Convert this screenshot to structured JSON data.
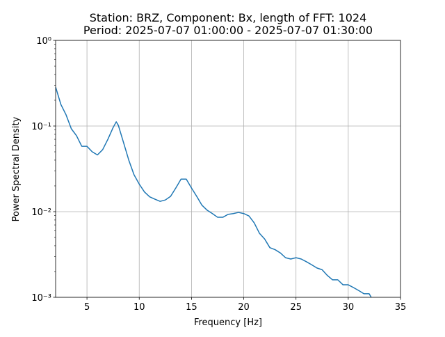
{
  "chart_data": {
    "type": "line",
    "title": "Station: BRZ, Component: Bx, length of FFT: 1024",
    "subtitle": "Period: 2025-07-07 01:00:00 - 2025-07-07 01:30:00",
    "x_label": "Frequency [Hz]",
    "y_label": "Power Spectral Density",
    "log_y": true,
    "grid": true,
    "xlim": [
      2,
      35
    ],
    "ylim": [
      0.001,
      1
    ],
    "xticks": [
      5,
      10,
      15,
      20,
      25,
      30,
      35
    ],
    "yticks": [
      {
        "value": 0.001,
        "label": "10⁻³"
      },
      {
        "value": 0.01,
        "label": "10⁻²"
      },
      {
        "value": 0.1,
        "label": "10⁻¹"
      },
      {
        "value": 1,
        "label": "10⁰"
      }
    ],
    "series": [
      {
        "color": "#1f77b4",
        "x": [
          2,
          2.5,
          3,
          3.5,
          4,
          4.5,
          5,
          5.5,
          6,
          6.5,
          7,
          7.5,
          7.8,
          8,
          8.5,
          9,
          9.5,
          10,
          10.5,
          11,
          11.5,
          12,
          12.5,
          13,
          13.5,
          14,
          14.5,
          15,
          15.5,
          16,
          16.5,
          17,
          17.5,
          18,
          18.5,
          19,
          19.5,
          20,
          20.5,
          21,
          21.5,
          22,
          22.5,
          23,
          23.5,
          24,
          24.5,
          25,
          25.5,
          26,
          26.5,
          27,
          27.5,
          28,
          28.5,
          29,
          29.5,
          30,
          30.5,
          31,
          31.5,
          32,
          32.2
        ],
        "values": [
          0.285,
          0.179,
          0.135,
          0.093,
          0.077,
          0.058,
          0.058,
          0.05,
          0.046,
          0.053,
          0.07,
          0.096,
          0.112,
          0.102,
          0.064,
          0.04,
          0.027,
          0.021,
          0.017,
          0.0149,
          0.014,
          0.0132,
          0.0137,
          0.0151,
          0.0189,
          0.024,
          0.024,
          0.0189,
          0.0151,
          0.0119,
          0.0104,
          0.0095,
          0.0086,
          0.0086,
          0.0093,
          0.0095,
          0.0098,
          0.0095,
          0.0089,
          0.0074,
          0.0056,
          0.0048,
          0.0038,
          0.0036,
          0.0033,
          0.0029,
          0.0028,
          0.0029,
          0.0028,
          0.0026,
          0.0024,
          0.0022,
          0.0021,
          0.0018,
          0.0016,
          0.0016,
          0.0014,
          0.0014,
          0.0013,
          0.0012,
          0.0011,
          0.0011,
          0.001
        ]
      }
    ]
  }
}
